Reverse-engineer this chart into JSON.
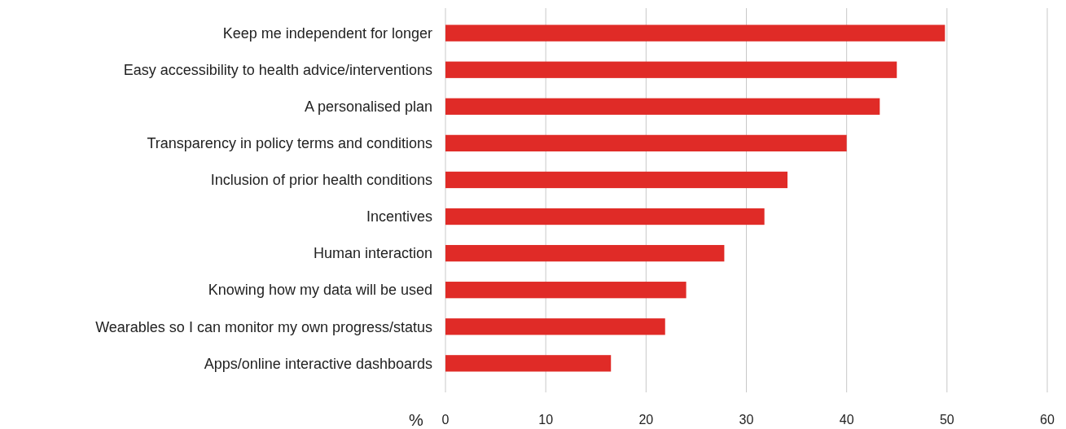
{
  "chart_data": {
    "type": "bar",
    "orientation": "horizontal",
    "xlabel": "%",
    "categories": [
      "Keep me independent for longer",
      "Easy accessibility to health advice/interventions",
      "A personalised plan",
      "Transparency in policy terms and conditions",
      "Inclusion of prior health conditions",
      "Incentives",
      "Human interaction",
      "Knowing how my data will be used",
      "Wearables so I can monitor my own progress/status",
      "Apps/online interactive dashboards"
    ],
    "values": [
      49.8,
      45.0,
      43.3,
      40.0,
      34.1,
      31.8,
      27.8,
      24.0,
      21.9,
      16.5
    ],
    "color": "#e02b27",
    "xlim": [
      0,
      60
    ],
    "xticks": [
      0,
      10,
      20,
      30,
      40,
      50,
      60
    ],
    "grid": "x"
  }
}
